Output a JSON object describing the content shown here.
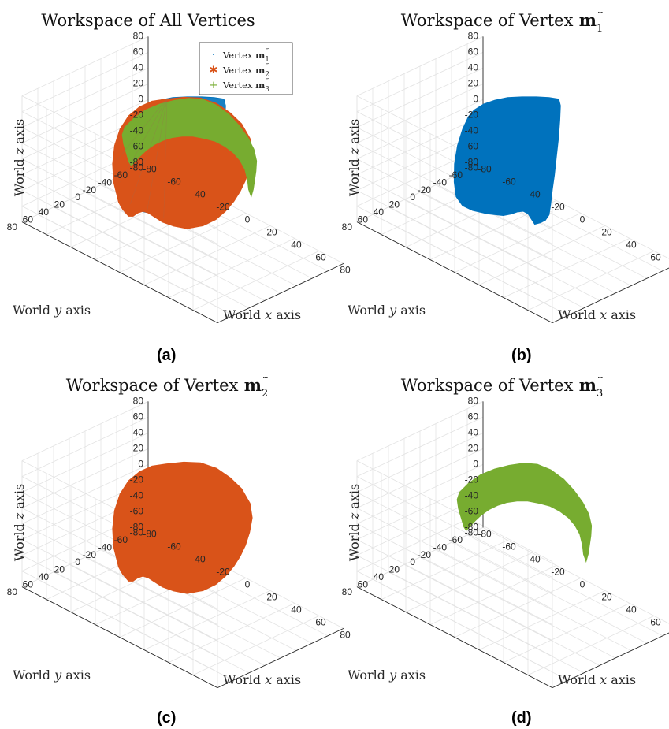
{
  "chart_data": [
    {
      "panel": "a",
      "type": "scatter",
      "title": "Workspace of All Vertices",
      "xlabel": "World x axis",
      "ylabel": "World y axis",
      "zlabel": "World z axis",
      "xlim": [
        -80,
        80
      ],
      "ylim": [
        -80,
        80
      ],
      "zlim": [
        -80,
        80
      ],
      "xticks": [
        -80,
        -60,
        -40,
        -20,
        0,
        20,
        40,
        60,
        80
      ],
      "yticks": [
        -80,
        -60,
        -40,
        -20,
        0,
        20,
        40,
        60,
        80
      ],
      "zticks": [
        -80,
        -60,
        -40,
        -20,
        0,
        20,
        40,
        60,
        80
      ],
      "grid": true,
      "legend_placement": "top-right",
      "legend": [
        {
          "prefix": "Vertex ",
          "symbol": "m",
          "sub": "1",
          "sup": "‴",
          "marker": "·",
          "color": "#0072BD"
        },
        {
          "prefix": "Vertex ",
          "symbol": "m",
          "sub": "2",
          "sup": "‴",
          "marker": "✱",
          "color": "#D95319"
        },
        {
          "prefix": "Vertex ",
          "symbol": "m",
          "sub": "3",
          "sup": "‴",
          "marker": "+",
          "color": "#77AC30"
        }
      ],
      "series": [
        {
          "name": "Vertex m1'''",
          "color": "#0072BD",
          "shape": "m1"
        },
        {
          "name": "Vertex m2'''",
          "color": "#D95319",
          "shape": "m2"
        },
        {
          "name": "Vertex m3'''",
          "color": "#77AC30",
          "shape": "m3"
        }
      ],
      "caption": "(a)"
    },
    {
      "panel": "b",
      "type": "scatter",
      "title": "Workspace of Vertex",
      "title_symbol": "m",
      "title_sub": "1",
      "title_sup": "‴",
      "xlabel": "World x axis",
      "ylabel": "World y axis",
      "zlabel": "World z axis",
      "xlim": [
        -80,
        80
      ],
      "ylim": [
        -80,
        80
      ],
      "zlim": [
        -80,
        80
      ],
      "xticks": [
        -80,
        -60,
        -40,
        -20,
        0,
        20,
        40,
        60,
        80
      ],
      "yticks": [
        -80,
        -60,
        -40,
        -20,
        0,
        20,
        40,
        60,
        80
      ],
      "zticks": [
        -80,
        -60,
        -40,
        -20,
        0,
        20,
        40,
        60,
        80
      ],
      "grid": true,
      "series": [
        {
          "color": "#0072BD",
          "shape": "m1"
        }
      ],
      "caption": "(b)"
    },
    {
      "panel": "c",
      "type": "scatter",
      "title": "Workspace of Vertex",
      "title_symbol": "m",
      "title_sub": "2",
      "title_sup": "‴",
      "xlabel": "World x axis",
      "ylabel": "World y axis",
      "zlabel": "World z axis",
      "xlim": [
        -80,
        80
      ],
      "ylim": [
        -80,
        80
      ],
      "zlim": [
        -80,
        80
      ],
      "xticks": [
        -80,
        -60,
        -40,
        -20,
        0,
        20,
        40,
        60,
        80
      ],
      "yticks": [
        -80,
        -60,
        -40,
        -20,
        0,
        20,
        40,
        60,
        80
      ],
      "zticks": [
        -80,
        -60,
        -40,
        -20,
        0,
        20,
        40,
        60,
        80
      ],
      "grid": true,
      "series": [
        {
          "color": "#D95319",
          "shape": "m2"
        }
      ],
      "caption": "(c)"
    },
    {
      "panel": "d",
      "type": "scatter",
      "title": "Workspace of Vertex",
      "title_symbol": "m",
      "title_sub": "3",
      "title_sup": "‴",
      "xlabel": "World x axis",
      "ylabel": "World y axis",
      "zlabel": "World z axis",
      "xlim": [
        -80,
        80
      ],
      "ylim": [
        -80,
        80
      ],
      "zlim": [
        -80,
        80
      ],
      "xticks": [
        -80,
        -60,
        -40,
        -20,
        0,
        20,
        40,
        60,
        80
      ],
      "yticks": [
        -80,
        -60,
        -40,
        -20,
        0,
        20,
        40,
        60,
        80
      ],
      "zticks": [
        -80,
        -60,
        -40,
        -20,
        0,
        20,
        40,
        60,
        80
      ],
      "grid": true,
      "series": [
        {
          "color": "#77AC30",
          "shape": "m3"
        }
      ],
      "caption": "(d)"
    }
  ]
}
